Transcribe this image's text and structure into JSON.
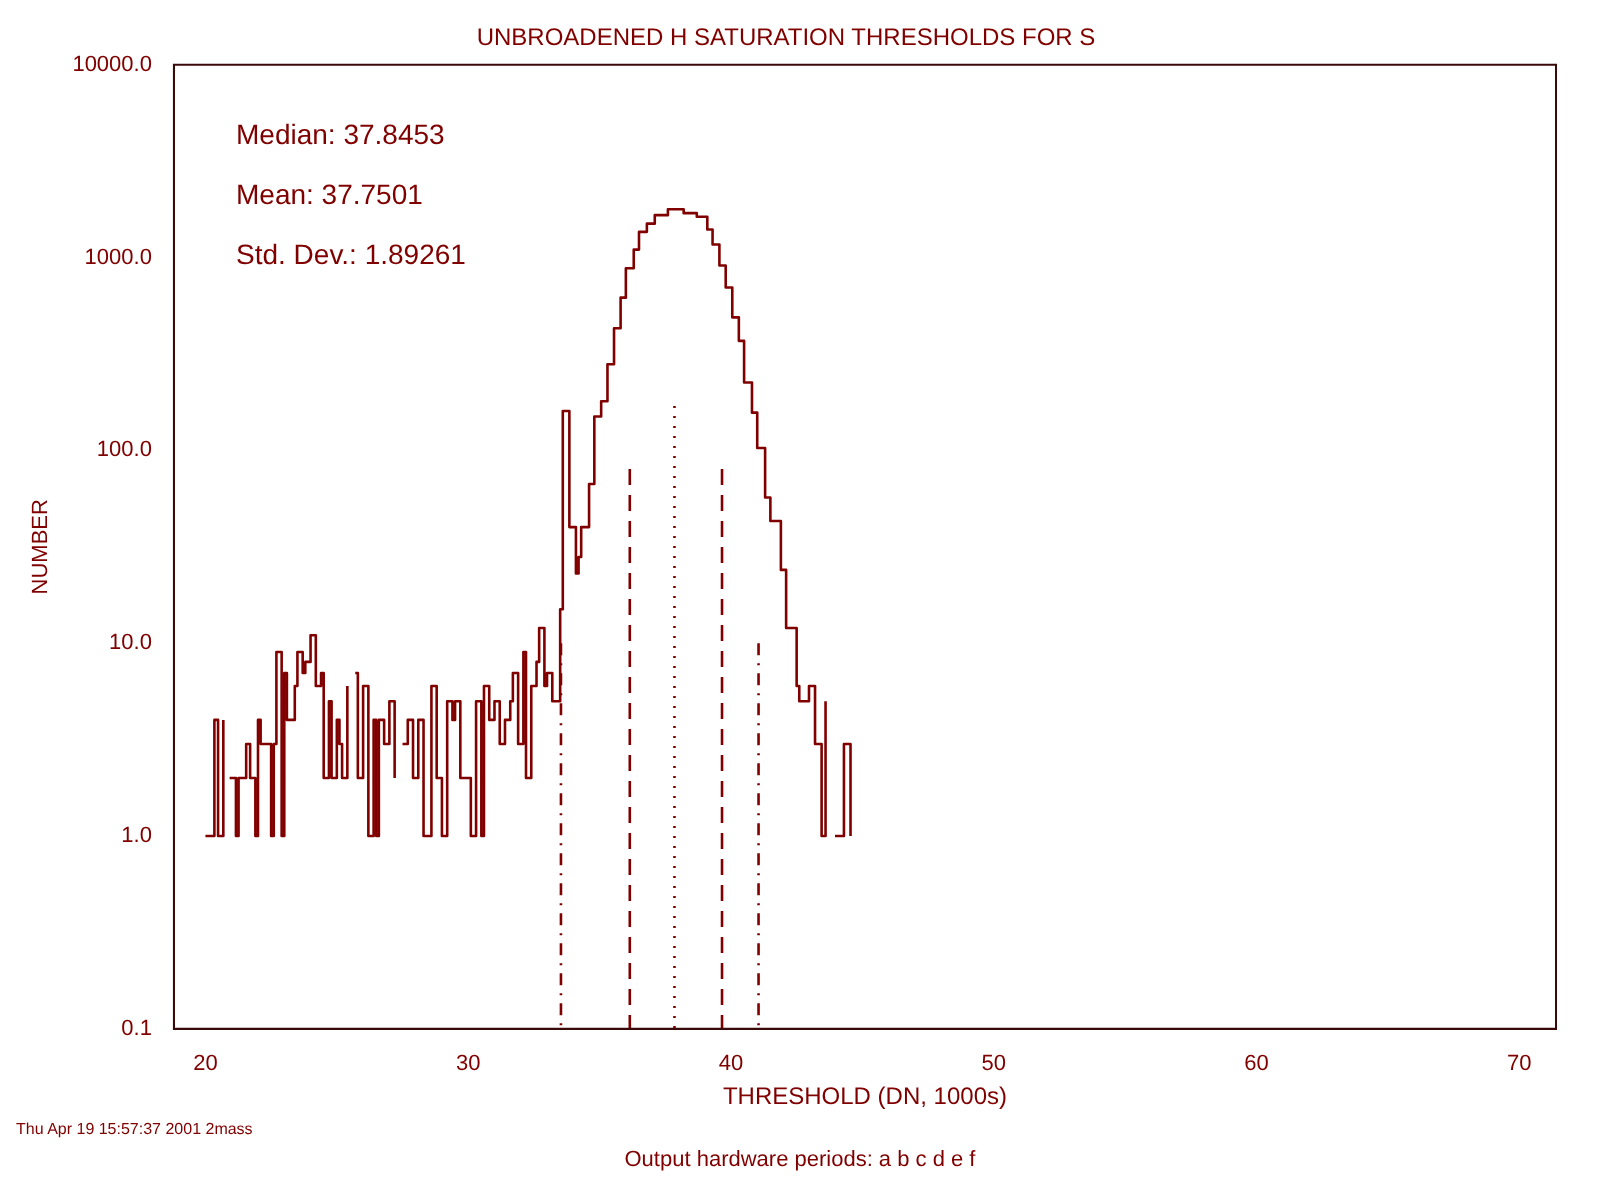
{
  "chart_data": {
    "type": "step",
    "title": "UNBROADENED H SATURATION THRESHOLDS FOR S",
    "xlabel": "THRESHOLD (DN, 1000s)",
    "ylabel": "NUMBER",
    "annotations": [
      "Median:  37.8453",
      "Mean:  37.7501",
      "Std. Dev.:  1.89261",
      "Thu Apr 19 15:57:37 2001 2mass",
      "Output hardware periods: a b c d e f"
    ],
    "log": "y",
    "xlim": [
      18.8,
      71.4
    ],
    "xticks": [
      20,
      30,
      40,
      50,
      60,
      70
    ],
    "ylim": [
      0.1,
      10000
    ],
    "yticks": [
      {
        "value": 0.1,
        "label": "0.1"
      },
      {
        "value": 1,
        "label": "1.0"
      },
      {
        "value": 10,
        "label": "10.0"
      },
      {
        "value": 100,
        "label": "100.0"
      },
      {
        "value": 1000,
        "label": "1000.0"
      },
      {
        "value": 10000,
        "label": "10000.0"
      }
    ],
    "grid": false,
    "legend": false,
    "series": [
      {
        "color": "#800000",
        "x": [
          20.0,
          20.34,
          20.48,
          20.68,
          20.85,
          20.92,
          21.16,
          21.26,
          21.55,
          21.7,
          21.9,
          22.0,
          22.1,
          22.5,
          22.6,
          22.7,
          22.9,
          23.0,
          23.1,
          23.4,
          23.5,
          23.7,
          23.8,
          24.0,
          24.2,
          24.4,
          24.5,
          24.7,
          24.8,
          25.0,
          25.1,
          25.2,
          25.4,
          25.6,
          25.7,
          25.8,
          26.0,
          26.2,
          26.4,
          26.5,
          26.6,
          26.8,
          27.0,
          27.2,
          27.3,
          27.5,
          27.7,
          27.9,
          28.1,
          28.3,
          28.6,
          28.8,
          29.0,
          29.2,
          29.4,
          29.5,
          29.7,
          30.1,
          30.3,
          30.5,
          30.6,
          30.8,
          31.0,
          31.2,
          31.4,
          31.6,
          31.7,
          31.9,
          32.1,
          32.2,
          32.4,
          32.6,
          32.7,
          32.9,
          33.0,
          33.2,
          33.5,
          33.6,
          33.85,
          34.1,
          34.2,
          34.3,
          34.6,
          34.8,
          35.06,
          35.3,
          35.55,
          35.8,
          36.0,
          36.3,
          36.5,
          36.8,
          37.1,
          37.6,
          38.2,
          38.7,
          39.1,
          39.3,
          39.56,
          39.8,
          40.05,
          40.3,
          40.5,
          40.8,
          41.0,
          41.3,
          41.5,
          41.9,
          42.1,
          42.5,
          42.6,
          42.97,
          43.2,
          43.45,
          43.6,
          43.7,
          43.96,
          44.3,
          44.55
        ],
        "values": [
          1,
          4,
          1,
          4,
          null,
          2,
          1,
          2,
          3,
          2,
          1,
          4,
          3,
          1,
          3,
          9,
          1,
          7,
          4,
          6,
          9,
          7,
          8,
          11,
          6,
          7,
          2,
          5,
          2,
          4,
          3,
          2,
          6,
          null,
          7,
          2,
          6,
          1,
          4,
          1,
          4,
          3,
          5,
          2,
          null,
          3,
          4,
          2,
          4,
          1,
          6,
          2,
          1,
          5,
          4,
          5,
          2,
          1,
          5,
          1,
          6,
          4,
          5,
          3,
          4,
          5,
          7,
          3,
          9,
          2,
          6,
          8,
          12,
          6,
          7,
          5,
          15,
          160,
          40,
          23,
          28,
          40,
          67,
          150,
          180,
          280,
          430,
          620,
          880,
          1100,
          1360,
          1500,
          1660,
          1780,
          1700,
          1630,
          1400,
          1170,
          910,
          700,
          490,
          370,
          225,
          157,
          103,
          57,
          43,
          24,
          12,
          6,
          5,
          6,
          3,
          1,
          5,
          null,
          1,
          3,
          1
        ]
      },
      {
        "type": "line",
        "color": "#800000",
        "line_style": "dashdot",
        "x": [
          33.53,
          33.53
        ],
        "values": [
          10,
          0.1
        ]
      },
      {
        "type": "line",
        "color": "#800000",
        "line_style": "dashed",
        "x": [
          36.15,
          36.15
        ],
        "values": [
          80,
          0.1
        ]
      },
      {
        "type": "line",
        "color": "#800000",
        "line_style": "dotted",
        "x": [
          37.85,
          37.85
        ],
        "values": [
          170,
          0.1
        ]
      },
      {
        "type": "line",
        "color": "#800000",
        "line_style": "dashed",
        "x": [
          39.66,
          39.66
        ],
        "values": [
          80,
          0.1
        ]
      },
      {
        "type": "line",
        "color": "#800000",
        "line_style": "dashdot",
        "x": [
          41.05,
          41.05
        ],
        "values": [
          10,
          0.1
        ]
      }
    ]
  }
}
